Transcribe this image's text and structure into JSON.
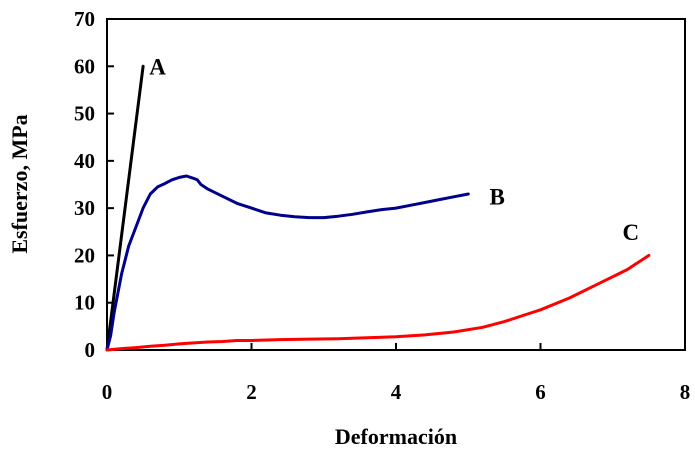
{
  "chart_data": {
    "type": "line",
    "xlabel": "Deformación",
    "ylabel": "Esfuerzo, MPa",
    "xlim": [
      0,
      8
    ],
    "ylim": [
      0,
      70
    ],
    "xticks": [
      "0",
      "2",
      "4",
      "6",
      "8"
    ],
    "yticks": [
      "0",
      "10",
      "20",
      "30",
      "40",
      "50",
      "60",
      "70"
    ],
    "grid": false,
    "legend": "none",
    "series": [
      {
        "name": "A",
        "color": "#000000",
        "x": [
          0,
          0.5
        ],
        "y": [
          0,
          60
        ]
      },
      {
        "name": "B",
        "color": "#00008b",
        "x": [
          0,
          0.05,
          0.1,
          0.2,
          0.3,
          0.4,
          0.5,
          0.6,
          0.7,
          0.8,
          0.9,
          1.0,
          1.1,
          1.2,
          1.25,
          1.3,
          1.4,
          1.6,
          1.8,
          2.0,
          2.2,
          2.4,
          2.6,
          2.8,
          3.0,
          3.2,
          3.4,
          3.6,
          3.8,
          4.0,
          4.2,
          4.4,
          4.6,
          4.8,
          5.0
        ],
        "y": [
          0,
          3,
          8,
          16,
          22,
          26,
          30,
          33,
          34.5,
          35.2,
          36,
          36.5,
          36.8,
          36.3,
          36,
          35,
          34,
          32.5,
          31,
          30,
          29,
          28.5,
          28.2,
          28,
          28,
          28.3,
          28.7,
          29.2,
          29.7,
          30,
          30.6,
          31.2,
          31.8,
          32.4,
          33
        ]
      },
      {
        "name": "C",
        "color": "#ff0000",
        "x": [
          0,
          0.2,
          0.4,
          0.6,
          0.8,
          1.0,
          1.2,
          1.4,
          1.6,
          1.8,
          2.0,
          2.4,
          2.8,
          3.2,
          3.6,
          4.0,
          4.4,
          4.8,
          5.2,
          5.5,
          5.8,
          6.0,
          6.4,
          6.8,
          7.2,
          7.5
        ],
        "y": [
          0,
          0.3,
          0.5,
          0.8,
          1.0,
          1.3,
          1.5,
          1.7,
          1.8,
          2.0,
          2.0,
          2.2,
          2.3,
          2.4,
          2.6,
          2.8,
          3.2,
          3.8,
          4.8,
          6.0,
          7.5,
          8.5,
          11,
          14,
          17,
          20
        ]
      }
    ],
    "annotations": [
      {
        "text": "A",
        "x": 0.7,
        "y": 60
      },
      {
        "text": "B",
        "x": 5.4,
        "y": 32.5
      },
      {
        "text": "C",
        "x": 7.25,
        "y": 25
      }
    ]
  }
}
